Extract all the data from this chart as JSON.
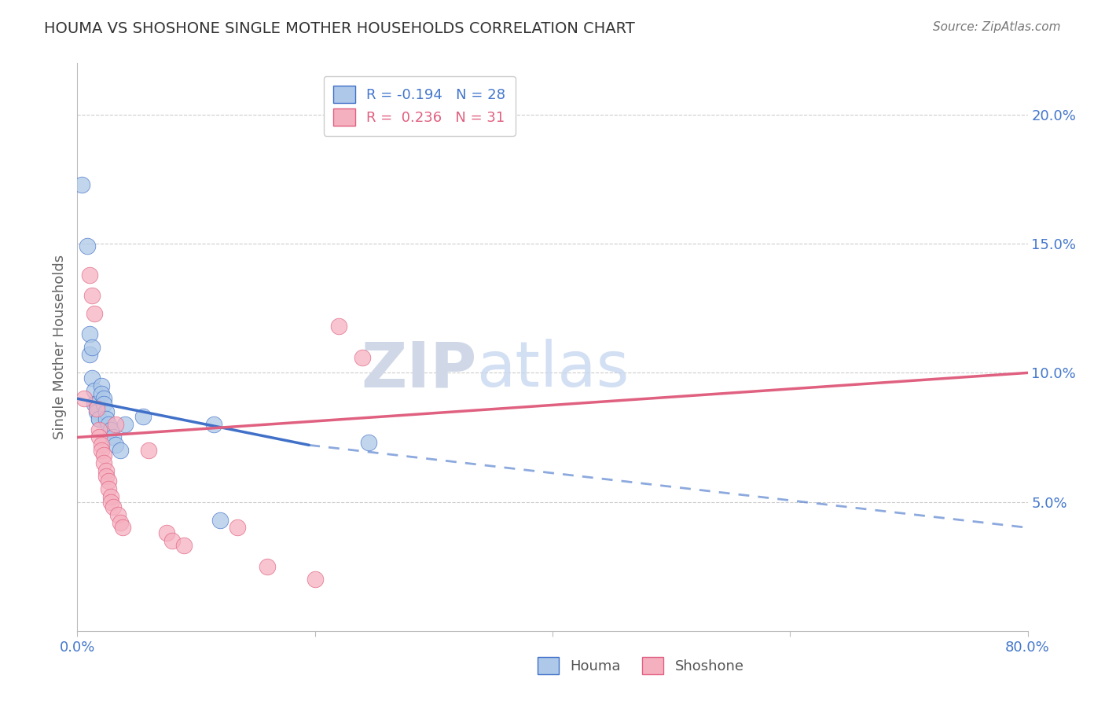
{
  "title": "HOUMA VS SHOSHONE SINGLE MOTHER HOUSEHOLDS CORRELATION CHART",
  "source": "Source: ZipAtlas.com",
  "ylabel": "Single Mother Households",
  "watermark_zip": "ZIP",
  "watermark_atlas": "atlas",
  "houma_R": -0.194,
  "houma_N": 28,
  "shoshone_R": 0.236,
  "shoshone_N": 31,
  "houma_color": "#adc8e8",
  "shoshone_color": "#f5b0c0",
  "houma_line_color": "#4070c8",
  "shoshone_line_color": "#e06080",
  "houma_scatter": [
    [
      0.004,
      0.173
    ],
    [
      0.008,
      0.149
    ],
    [
      0.01,
      0.115
    ],
    [
      0.01,
      0.107
    ],
    [
      0.012,
      0.098
    ],
    [
      0.012,
      0.11
    ],
    [
      0.014,
      0.093
    ],
    [
      0.014,
      0.088
    ],
    [
      0.016,
      0.088
    ],
    [
      0.016,
      0.085
    ],
    [
      0.018,
      0.082
    ],
    [
      0.018,
      0.082
    ],
    [
      0.02,
      0.095
    ],
    [
      0.02,
      0.092
    ],
    [
      0.022,
      0.09
    ],
    [
      0.022,
      0.088
    ],
    [
      0.024,
      0.085
    ],
    [
      0.024,
      0.082
    ],
    [
      0.026,
      0.08
    ],
    [
      0.028,
      0.078
    ],
    [
      0.03,
      0.075
    ],
    [
      0.032,
      0.072
    ],
    [
      0.036,
      0.07
    ],
    [
      0.04,
      0.08
    ],
    [
      0.055,
      0.083
    ],
    [
      0.115,
      0.08
    ],
    [
      0.12,
      0.043
    ],
    [
      0.245,
      0.073
    ]
  ],
  "shoshone_scatter": [
    [
      0.006,
      0.09
    ],
    [
      0.01,
      0.138
    ],
    [
      0.012,
      0.13
    ],
    [
      0.014,
      0.123
    ],
    [
      0.016,
      0.086
    ],
    [
      0.018,
      0.078
    ],
    [
      0.018,
      0.075
    ],
    [
      0.02,
      0.072
    ],
    [
      0.02,
      0.07
    ],
    [
      0.022,
      0.068
    ],
    [
      0.022,
      0.065
    ],
    [
      0.024,
      0.062
    ],
    [
      0.024,
      0.06
    ],
    [
      0.026,
      0.058
    ],
    [
      0.026,
      0.055
    ],
    [
      0.028,
      0.052
    ],
    [
      0.028,
      0.05
    ],
    [
      0.03,
      0.048
    ],
    [
      0.032,
      0.08
    ],
    [
      0.034,
      0.045
    ],
    [
      0.036,
      0.042
    ],
    [
      0.038,
      0.04
    ],
    [
      0.06,
      0.07
    ],
    [
      0.075,
      0.038
    ],
    [
      0.08,
      0.035
    ],
    [
      0.09,
      0.033
    ],
    [
      0.135,
      0.04
    ],
    [
      0.16,
      0.025
    ],
    [
      0.2,
      0.02
    ],
    [
      0.22,
      0.118
    ],
    [
      0.24,
      0.106
    ]
  ],
  "houma_trendline_solid": [
    [
      0.0,
      0.09
    ],
    [
      0.195,
      0.072
    ]
  ],
  "houma_trendline_dashed": [
    [
      0.195,
      0.072
    ],
    [
      0.8,
      0.04
    ]
  ],
  "shoshone_trendline": [
    [
      0.0,
      0.075
    ],
    [
      0.8,
      0.1
    ]
  ],
  "xlim": [
    0.0,
    0.8
  ],
  "ylim": [
    0.0,
    0.22
  ],
  "yticks": [
    0.05,
    0.1,
    0.15,
    0.2
  ],
  "ytick_labels": [
    "5.0%",
    "10.0%",
    "15.0%",
    "20.0%"
  ],
  "grid_color": "#cccccc",
  "background_color": "#ffffff",
  "title_color": "#333333",
  "axis_label_color": "#666666",
  "tick_color": "#4477cc",
  "legend_houma_label": "Houma",
  "legend_shoshone_label": "Shoshone"
}
